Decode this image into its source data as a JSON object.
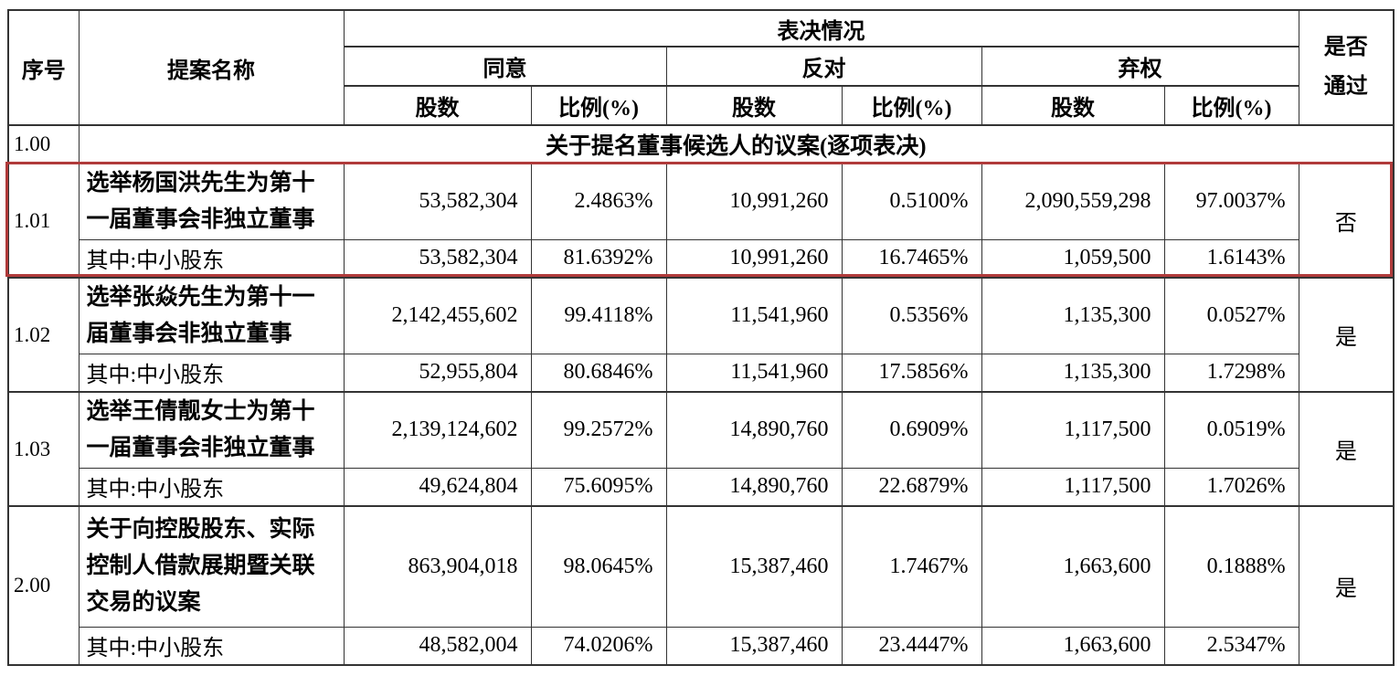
{
  "highlight": {
    "color": "#b03a3a",
    "group_index": 0
  },
  "table": {
    "header": {
      "seq": "序号",
      "proposal": "提案名称",
      "voting": "表决情况",
      "agree": "同意",
      "oppose": "反对",
      "abstain": "弃权",
      "shares": "股数",
      "ratio": "比例(%)",
      "pass": "是否通过"
    },
    "section": {
      "seq": "1.00",
      "title": "关于提名董事候选人的议案(逐项表决)"
    },
    "minority_label": "其中:中小股东",
    "groups": [
      {
        "seq": "1.01",
        "proposal": "选举杨国洪先生为第十一届董事会非独立董事",
        "main": [
          "53,582,304",
          "2.4863%",
          "10,991,260",
          "0.5100%",
          "2,090,559,298",
          "97.0037%"
        ],
        "sub": [
          "53,582,304",
          "81.6392%",
          "10,991,260",
          "16.7465%",
          "1,059,500",
          "1.6143%"
        ],
        "pass": "否",
        "highlighted": true
      },
      {
        "seq": "1.02",
        "proposal": "选举张焱先生为第十一届董事会非独立董事",
        "main": [
          "2,142,455,602",
          "99.4118%",
          "11,541,960",
          "0.5356%",
          "1,135,300",
          "0.0527%"
        ],
        "sub": [
          "52,955,804",
          "80.6846%",
          "11,541,960",
          "17.5856%",
          "1,135,300",
          "1.7298%"
        ],
        "pass": "是",
        "highlighted": false
      },
      {
        "seq": "1.03",
        "proposal": "选举王倩靓女士为第十一届董事会非独立董事",
        "main": [
          "2,139,124,602",
          "99.2572%",
          "14,890,760",
          "0.6909%",
          "1,117,500",
          "0.0519%"
        ],
        "sub": [
          "49,624,804",
          "75.6095%",
          "14,890,760",
          "22.6879%",
          "1,117,500",
          "1.7026%"
        ],
        "pass": "是",
        "highlighted": false
      },
      {
        "seq": "2.00",
        "proposal": "关于向控股股东、实际控制人借款展期暨关联交易的议案",
        "main": [
          "863,904,018",
          "98.0645%",
          "15,387,460",
          "1.7467%",
          "1,663,600",
          "0.1888%"
        ],
        "sub": [
          "48,582,004",
          "74.0206%",
          "15,387,460",
          "23.4447%",
          "1,663,600",
          "2.5347%"
        ],
        "pass": "是",
        "highlighted": false
      }
    ]
  }
}
